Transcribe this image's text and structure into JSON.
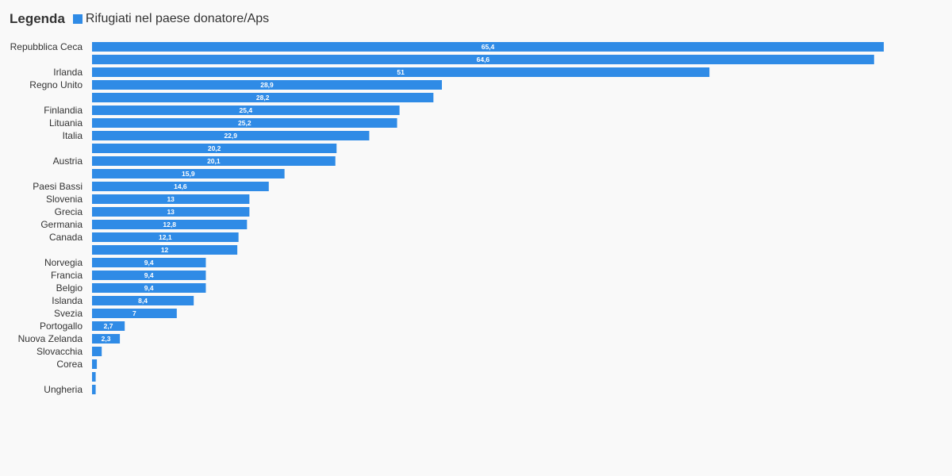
{
  "chart_data": {
    "type": "bar",
    "orientation": "horizontal",
    "legend": {
      "title": "Legenda",
      "placement": "top-left"
    },
    "series": [
      {
        "name": "Rifugiati nel paese donatore/Aps",
        "color": "#2f8be6",
        "values": [
          65.4,
          64.6,
          51,
          28.9,
          28.2,
          25.4,
          25.2,
          22.9,
          20.2,
          20.1,
          15.9,
          14.6,
          13,
          13,
          12.8,
          12.1,
          12,
          9.4,
          9.4,
          9.4,
          8.4,
          7,
          2.7,
          2.3,
          0.8,
          0.4,
          0.3,
          0.3
        ]
      }
    ],
    "categories": [
      "Repubblica Ceca",
      "",
      "Irlanda",
      "Regno Unito",
      "",
      "Finlandia",
      "Lituania",
      "Italia",
      "",
      "Austria",
      "",
      "Paesi Bassi",
      "Slovenia",
      "Grecia",
      "Germania",
      "Canada",
      "",
      "Norvegia",
      "Francia",
      "Belgio",
      "Islanda",
      "Svezia",
      "Portogallo",
      "Nuova Zelanda",
      "Slovacchia",
      "Corea",
      "",
      "Ungheria"
    ],
    "data_labels": [
      "65,4",
      "64,6",
      "51",
      "28,9",
      "28,2",
      "25,4",
      "25,2",
      "22,9",
      "20,2",
      "20,1",
      "15,9",
      "14,6",
      "13",
      "13",
      "12,8",
      "12,1",
      "12",
      "9,4",
      "9,4",
      "9,4",
      "8,4",
      "7",
      "2,7",
      "2,3",
      "",
      "",
      "",
      ""
    ],
    "xlim": [
      0,
      66
    ],
    "grid": false
  }
}
